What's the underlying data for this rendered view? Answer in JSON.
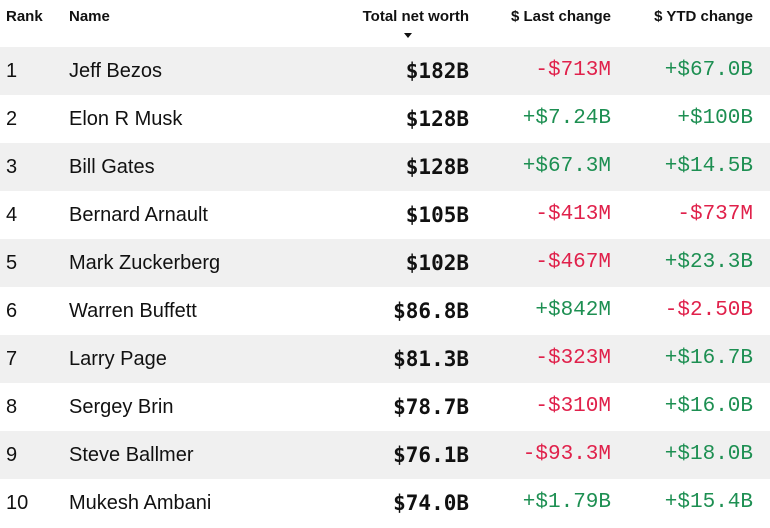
{
  "header": {
    "rank": "Rank",
    "name": "Name",
    "total_net_worth": "Total net worth",
    "last_change": "$ Last change",
    "ytd_change": "$ YTD change",
    "sort_icon": "sort-descending-icon"
  },
  "colors": {
    "positive": "#1d8f52",
    "negative": "#e0214b",
    "row_shade": "#f0f0f0"
  },
  "rows": [
    {
      "rank": "1",
      "name": "Jeff Bezos",
      "worth": "$182B",
      "last": "-$713M",
      "ytd": "+$67.0B"
    },
    {
      "rank": "2",
      "name": "Elon R Musk",
      "worth": "$128B",
      "last": "+$7.24B",
      "ytd": "+$100B"
    },
    {
      "rank": "3",
      "name": "Bill Gates",
      "worth": "$128B",
      "last": "+$67.3M",
      "ytd": "+$14.5B"
    },
    {
      "rank": "4",
      "name": "Bernard Arnault",
      "worth": "$105B",
      "last": "-$413M",
      "ytd": "-$737M"
    },
    {
      "rank": "5",
      "name": "Mark Zuckerberg",
      "worth": "$102B",
      "last": "-$467M",
      "ytd": "+$23.3B"
    },
    {
      "rank": "6",
      "name": "Warren Buffett",
      "worth": "$86.8B",
      "last": "+$842M",
      "ytd": "-$2.50B"
    },
    {
      "rank": "7",
      "name": "Larry Page",
      "worth": "$81.3B",
      "last": "-$323M",
      "ytd": "+$16.7B"
    },
    {
      "rank": "8",
      "name": "Sergey Brin",
      "worth": "$78.7B",
      "last": "-$310M",
      "ytd": "+$16.0B"
    },
    {
      "rank": "9",
      "name": "Steve Ballmer",
      "worth": "$76.1B",
      "last": "-$93.3M",
      "ytd": "+$18.0B"
    },
    {
      "rank": "10",
      "name": "Mukesh Ambani",
      "worth": "$74.0B",
      "last": "+$1.79B",
      "ytd": "+$15.4B"
    }
  ]
}
